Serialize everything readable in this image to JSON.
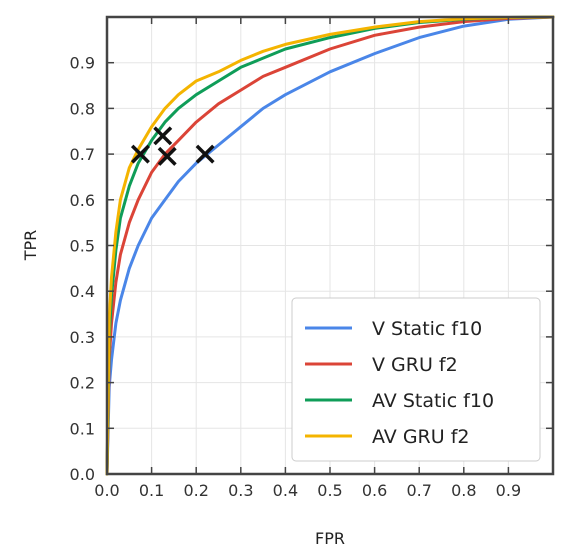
{
  "chart_data": {
    "type": "line",
    "title": "",
    "xlabel": "FPR",
    "ylabel": "TPR",
    "xlim": [
      0,
      1
    ],
    "ylim": [
      0,
      1
    ],
    "xticks": [
      "0.0",
      "0.1",
      "0.2",
      "0.3",
      "0.4",
      "0.5",
      "0.6",
      "0.7",
      "0.8",
      "0.9"
    ],
    "yticks": [
      "0.0",
      "0.1",
      "0.2",
      "0.3",
      "0.4",
      "0.5",
      "0.6",
      "0.7",
      "0.8",
      "0.9"
    ],
    "grid": true,
    "legend_position": "bottom-right",
    "series": [
      {
        "name": "V Static f10",
        "color": "#4a86e8",
        "x": [
          0,
          0.005,
          0.01,
          0.02,
          0.03,
          0.05,
          0.07,
          0.1,
          0.13,
          0.16,
          0.2,
          0.25,
          0.3,
          0.35,
          0.4,
          0.5,
          0.6,
          0.7,
          0.8,
          0.9,
          1.0
        ],
        "y": [
          0,
          0.19,
          0.25,
          0.33,
          0.38,
          0.45,
          0.5,
          0.56,
          0.6,
          0.64,
          0.68,
          0.72,
          0.76,
          0.8,
          0.83,
          0.88,
          0.92,
          0.955,
          0.98,
          0.995,
          1.0
        ]
      },
      {
        "name": "V GRU f2",
        "color": "#db4437",
        "x": [
          0,
          0.005,
          0.01,
          0.02,
          0.03,
          0.05,
          0.07,
          0.1,
          0.13,
          0.16,
          0.2,
          0.25,
          0.3,
          0.35,
          0.4,
          0.5,
          0.6,
          0.7,
          0.8,
          0.9,
          1.0
        ],
        "y": [
          0,
          0.25,
          0.33,
          0.42,
          0.48,
          0.55,
          0.6,
          0.66,
          0.7,
          0.73,
          0.77,
          0.81,
          0.84,
          0.87,
          0.89,
          0.93,
          0.96,
          0.978,
          0.99,
          0.997,
          1.0
        ]
      },
      {
        "name": "AV Static f10",
        "color": "#0f9d58",
        "x": [
          0,
          0.005,
          0.01,
          0.02,
          0.03,
          0.05,
          0.07,
          0.1,
          0.13,
          0.16,
          0.2,
          0.25,
          0.3,
          0.35,
          0.4,
          0.5,
          0.6,
          0.7,
          0.8,
          0.9,
          1.0
        ],
        "y": [
          0,
          0.3,
          0.39,
          0.49,
          0.56,
          0.63,
          0.68,
          0.73,
          0.77,
          0.8,
          0.83,
          0.86,
          0.89,
          0.91,
          0.93,
          0.955,
          0.975,
          0.988,
          0.995,
          0.999,
          1.0
        ]
      },
      {
        "name": "AV GRU f2",
        "color": "#f4b400",
        "x": [
          0,
          0.005,
          0.01,
          0.02,
          0.03,
          0.05,
          0.07,
          0.1,
          0.13,
          0.16,
          0.2,
          0.25,
          0.3,
          0.35,
          0.4,
          0.5,
          0.6,
          0.7,
          0.8,
          0.9,
          1.0
        ],
        "y": [
          0,
          0.34,
          0.43,
          0.53,
          0.6,
          0.67,
          0.71,
          0.76,
          0.8,
          0.83,
          0.86,
          0.88,
          0.905,
          0.925,
          0.94,
          0.962,
          0.978,
          0.99,
          0.996,
          0.999,
          1.0
        ]
      }
    ],
    "markers": [
      {
        "x": 0.075,
        "y": 0.7
      },
      {
        "x": 0.125,
        "y": 0.74
      },
      {
        "x": 0.135,
        "y": 0.695
      },
      {
        "x": 0.22,
        "y": 0.7
      }
    ],
    "marker_symbol": "x",
    "marker_color": "#111111"
  }
}
